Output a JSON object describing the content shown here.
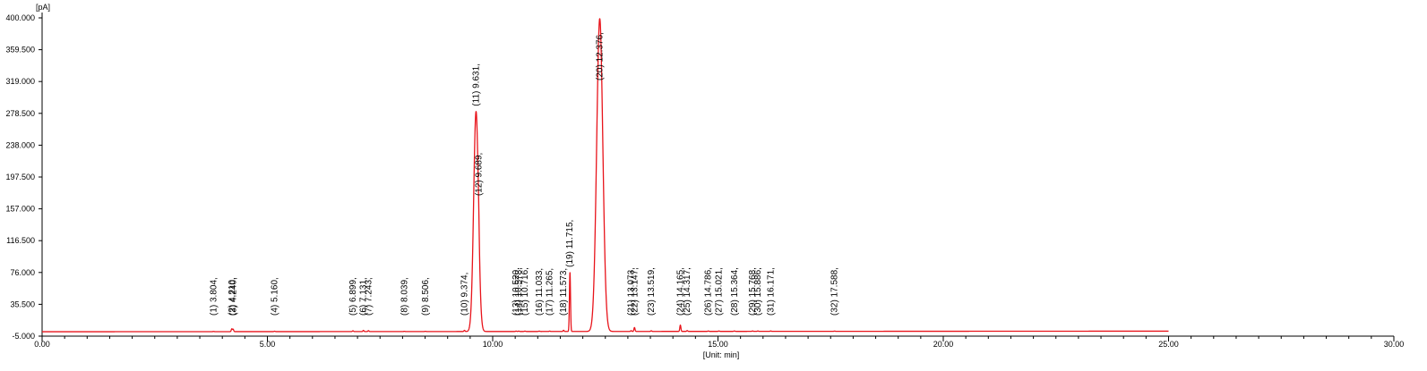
{
  "chart_data": {
    "type": "line",
    "ylabel": "[pA]",
    "xlabel": "[Unit: min]",
    "xlim": [
      0,
      30
    ],
    "ylim": [
      -5,
      400
    ],
    "x_ticks": [
      "0.00",
      "5.00",
      "10.00",
      "15.00",
      "20.00",
      "25.00",
      "30.00"
    ],
    "y_ticks": [
      "400.000",
      "359.500",
      "319.000",
      "278.500",
      "238.000",
      "197.500",
      "157.000",
      "116.500",
      "76.000",
      "35.500",
      "-5.000"
    ],
    "grid": false,
    "colors": {
      "trace": "#e8141b",
      "axis": "#000000"
    },
    "trace_end_min": 25.0,
    "baseline": 0.6,
    "peaks": [
      {
        "label": "(1) 3.804,",
        "rt": 3.804,
        "height": 0.3
      },
      {
        "label": "(2) 4.210,",
        "rt": 4.21,
        "height": 3.5
      },
      {
        "label": "(3) 4.240,",
        "rt": 4.24,
        "height": 3.0
      },
      {
        "label": "(4) 5.160,",
        "rt": 5.16,
        "height": 0.5
      },
      {
        "label": "(5) 6.899,",
        "rt": 6.899,
        "height": 1.0
      },
      {
        "label": "(6) 7.131,",
        "rt": 7.131,
        "height": 1.5
      },
      {
        "label": "(7) 7.243,",
        "rt": 7.243,
        "height": 1.2
      },
      {
        "label": "(8) 8.039,",
        "rt": 8.039,
        "height": 0.3
      },
      {
        "label": "(9) 8.506,",
        "rt": 8.506,
        "height": 0.3
      },
      {
        "label": "(10) 9.374,",
        "rt": 9.374,
        "height": 1.5
      },
      {
        "label": "(11) 9.631,",
        "rt": 9.631,
        "height": 280
      },
      {
        "label": "(12) 9.689,",
        "rt": 9.689,
        "height": 12
      },
      {
        "label": "(13) 10.520,",
        "rt": 10.52,
        "height": 0.5
      },
      {
        "label": "(14) 10.578,",
        "rt": 10.578,
        "height": 0.5
      },
      {
        "label": "(15) 10.716,",
        "rt": 10.716,
        "height": 0.5
      },
      {
        "label": "(16) 11.033,",
        "rt": 11.033,
        "height": 0.5
      },
      {
        "label": "(17) 11.265,",
        "rt": 11.265,
        "height": 0.5
      },
      {
        "label": "(18) 11.573,",
        "rt": 11.573,
        "height": 1.5
      },
      {
        "label": "(19) 11.715,",
        "rt": 11.715,
        "height": 75
      },
      {
        "label": "(20) 12.376,",
        "rt": 12.376,
        "height": 398
      },
      {
        "label": "(21) 13.073,",
        "rt": 13.073,
        "height": 1.0
      },
      {
        "label": "(22) 13.147,",
        "rt": 13.147,
        "height": 5.0
      },
      {
        "label": "(23) 13.519,",
        "rt": 13.519,
        "height": 0.8
      },
      {
        "label": "(24) 14.165,",
        "rt": 14.165,
        "height": 8.0
      },
      {
        "label": "(25) 14.317,",
        "rt": 14.317,
        "height": 1.0
      },
      {
        "label": "(26) 14.786,",
        "rt": 14.786,
        "height": 0.5
      },
      {
        "label": "(27) 15.021,",
        "rt": 15.021,
        "height": 0.5
      },
      {
        "label": "(28) 15.364,",
        "rt": 15.364,
        "height": 0.5
      },
      {
        "label": "(29) 15.768,",
        "rt": 15.768,
        "height": 0.5
      },
      {
        "label": "(30) 15.886,",
        "rt": 15.886,
        "height": 0.5
      },
      {
        "label": "(31) 16.171,",
        "rt": 16.171,
        "height": 0.5
      },
      {
        "label": "(32) 17.588,",
        "rt": 17.588,
        "height": 0.3
      }
    ]
  }
}
